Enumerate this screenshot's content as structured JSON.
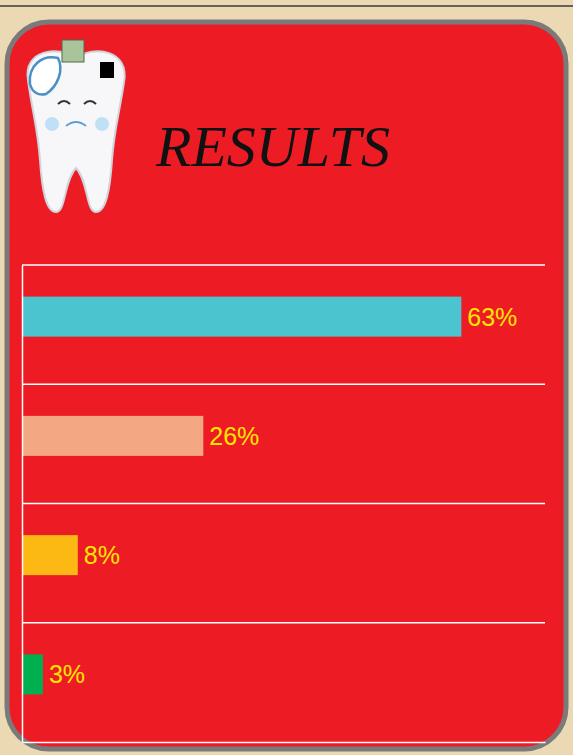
{
  "chart_data": {
    "type": "bar",
    "title": "RESULTS",
    "categories": [
      null,
      null,
      null,
      null
    ],
    "values": [
      63,
      26,
      8,
      3
    ],
    "value_labels": [
      "63%",
      "26%",
      "8%",
      "3%"
    ],
    "colors": [
      "#4bc4cf",
      "#f4a882",
      "#fdb913",
      "#00b050"
    ],
    "orientation": "horizontal",
    "data_labels": true,
    "xlim": [
      0,
      75
    ],
    "xticks": [],
    "tick_labels": false
  }
}
